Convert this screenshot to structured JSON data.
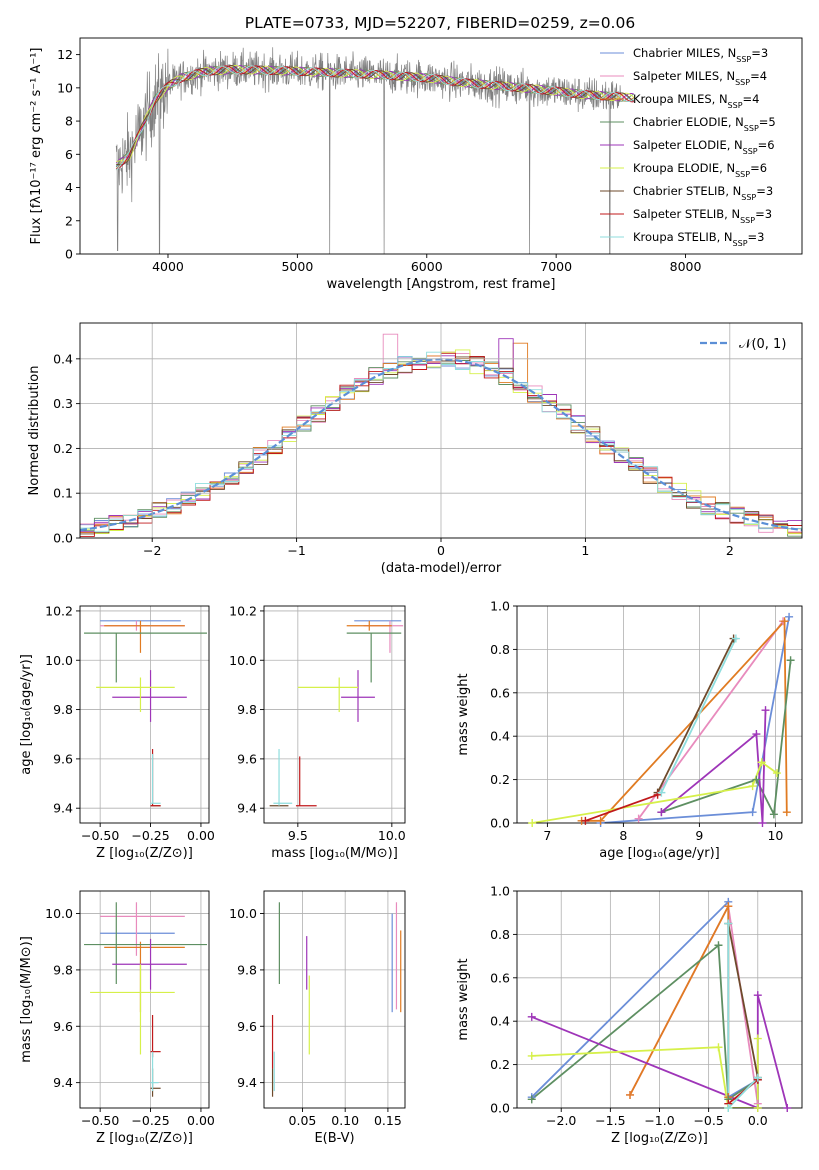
{
  "page_title": "PLATE=0733, MJD=52207, FIBERID=0259, z=0.06",
  "models": [
    {
      "name": "Chabrier MILES",
      "nssp": "3",
      "color": "#6b8ed8"
    },
    {
      "name": "Salpeter MILES",
      "nssp": "4",
      "color": "#e88bbd"
    },
    {
      "name": "Kroupa MILES",
      "nssp": "4",
      "color": "#e07b22"
    },
    {
      "name": "Chabrier ELODIE",
      "nssp": "5",
      "color": "#5e8f62"
    },
    {
      "name": "Salpeter ELODIE",
      "nssp": "6",
      "color": "#9e35b8"
    },
    {
      "name": "Kroupa ELODIE",
      "nssp": "6",
      "color": "#d6f04a"
    },
    {
      "name": "Chabrier STELIB",
      "nssp": "3",
      "color": "#6e4a2b"
    },
    {
      "name": "Salpeter STELIB",
      "nssp": "3",
      "color": "#c0191b"
    },
    {
      "name": "Kroupa STELIB",
      "nssp": "3",
      "color": "#8fdede"
    }
  ],
  "chart_data": [
    {
      "id": "spectrum",
      "type": "line",
      "xlabel": "wavelength [Angstrom, rest frame]",
      "ylabel": "Flux [fλ10⁻¹⁷ erg cm⁻² s⁻¹ A⁻¹]",
      "xlim": [
        3320,
        8900
      ],
      "ylim": [
        0,
        13
      ],
      "xticks": [
        4000,
        5000,
        6000,
        7000,
        8000
      ],
      "yticks": [
        0,
        2,
        4,
        6,
        8,
        10,
        12
      ],
      "data_color": "#808080",
      "continuum": {
        "x": [
          3600,
          3700,
          3800,
          3900,
          4000,
          4100,
          4300,
          4500,
          4800,
          5000,
          5300,
          5600,
          6000,
          6300,
          6600,
          7000,
          7200,
          7400,
          7600
        ],
        "y": [
          5.3,
          5.9,
          7.6,
          9.3,
          10.1,
          10.6,
          11.0,
          11.1,
          11.05,
          11.0,
          10.9,
          10.8,
          10.6,
          10.3,
          10.1,
          9.8,
          9.6,
          9.5,
          9.4
        ]
      },
      "absorption_dips": [
        {
          "x": 3610,
          "y": 0.2
        },
        {
          "x": 3935,
          "y": 0.0
        },
        {
          "x": 5250,
          "y": 0.0
        },
        {
          "x": 5670,
          "y": 0.0
        },
        {
          "x": 6795,
          "y": 0.0
        },
        {
          "x": 7415,
          "y": 0.0
        }
      ]
    },
    {
      "id": "residual_hist",
      "type": "bar",
      "xlabel": "(data-model)/error",
      "ylabel": "Normed distribution",
      "xlim": [
        -2.5,
        2.5
      ],
      "ylim": [
        0,
        0.48
      ],
      "xticks": [
        -2,
        -1,
        0,
        1,
        2
      ],
      "yticks": [
        0.0,
        0.1,
        0.2,
        0.3,
        0.4
      ],
      "bin_width": 0.1,
      "legend_label": "𝒩(0, 1)",
      "legend_color": "#5b8fd6",
      "outliers": [
        {
          "x": -0.35,
          "y": 0.455,
          "color": "#e88bbd"
        },
        {
          "x": 0.45,
          "y": 0.445,
          "color": "#9e35b8"
        },
        {
          "x": 0.55,
          "y": 0.435,
          "color": "#e07b22"
        },
        {
          "x": 0.15,
          "y": 0.42,
          "color": "#d6f04a"
        }
      ]
    },
    {
      "id": "age_vs_Z",
      "type": "errorbar",
      "xlabel": "Z [log₁₀(Z/Z⊙)]",
      "ylabel": "age  [log₁₀(age/yr)]",
      "xlim": [
        -0.6,
        0.04
      ],
      "ylim": [
        9.34,
        10.22
      ],
      "xticks": [
        -0.5,
        -0.25,
        0.0
      ],
      "xticklabels": [
        "−0.50",
        "−0.25",
        "0.00"
      ],
      "yticks": [
        9.4,
        9.6,
        9.8,
        10.0,
        10.2
      ],
      "points": [
        {
          "x": -0.32,
          "y": 10.16,
          "xl": -0.5,
          "xh": -0.1,
          "yl": 10.16,
          "yh": 10.16,
          "c": "#6b8ed8"
        },
        {
          "x": -0.32,
          "y": 10.14,
          "xl": -0.5,
          "xh": -0.08,
          "yl": 10.12,
          "yh": 10.16,
          "c": "#e88bbd"
        },
        {
          "x": -0.3,
          "y": 10.14,
          "xl": -0.48,
          "xh": -0.08,
          "yl": 10.03,
          "yh": 10.16,
          "c": "#e07b22"
        },
        {
          "x": -0.42,
          "y": 10.11,
          "xl": -0.58,
          "xh": 0.03,
          "yl": 9.91,
          "yh": 10.11,
          "c": "#5e8f62"
        },
        {
          "x": -0.25,
          "y": 9.85,
          "xl": -0.44,
          "xh": -0.07,
          "yl": 9.75,
          "yh": 9.96,
          "c": "#9e35b8"
        },
        {
          "x": -0.3,
          "y": 9.89,
          "xl": -0.52,
          "xh": -0.13,
          "yl": 9.79,
          "yh": 9.93,
          "c": "#d6f04a"
        },
        {
          "x": -0.24,
          "y": 9.41,
          "xl": -0.25,
          "xh": -0.2,
          "yl": 9.41,
          "yh": 9.41,
          "c": "#6e4a2b"
        },
        {
          "x": -0.24,
          "y": 9.41,
          "xl": -0.25,
          "xh": -0.2,
          "yl": 9.41,
          "yh": 9.64,
          "c": "#c0191b"
        },
        {
          "x": -0.24,
          "y": 9.42,
          "xl": -0.25,
          "xh": -0.2,
          "yl": 9.42,
          "yh": 9.62,
          "c": "#8fdede"
        }
      ]
    },
    {
      "id": "age_vs_mass",
      "type": "errorbar",
      "xlabel": "mass [log₁₀(M/M⊙)]",
      "ylabel": "",
      "xlim": [
        9.32,
        10.07
      ],
      "ylim": [
        9.34,
        10.22
      ],
      "xticks": [
        9.5,
        10.0
      ],
      "xticklabels": [
        "9.5",
        "10.0"
      ],
      "yticks": [
        9.4,
        9.6,
        9.8,
        10.0,
        10.2
      ],
      "points": [
        {
          "x": 9.93,
          "y": 10.16,
          "xl": 9.8,
          "xh": 10.05,
          "yl": 10.16,
          "yh": 10.16,
          "c": "#6b8ed8"
        },
        {
          "x": 9.99,
          "y": 10.14,
          "xl": 9.85,
          "xh": 10.06,
          "yl": 10.03,
          "yh": 10.16,
          "c": "#e88bbd"
        },
        {
          "x": 9.88,
          "y": 10.14,
          "xl": 9.76,
          "xh": 10.0,
          "yl": 10.12,
          "yh": 10.16,
          "c": "#e07b22"
        },
        {
          "x": 9.89,
          "y": 10.11,
          "xl": 9.76,
          "xh": 10.05,
          "yl": 9.91,
          "yh": 10.11,
          "c": "#5e8f62"
        },
        {
          "x": 9.82,
          "y": 9.85,
          "xl": 9.73,
          "xh": 9.91,
          "yl": 9.75,
          "yh": 9.96,
          "c": "#9e35b8"
        },
        {
          "x": 9.72,
          "y": 9.89,
          "xl": 9.5,
          "xh": 9.82,
          "yl": 9.79,
          "yh": 9.93,
          "c": "#d6f04a"
        },
        {
          "x": 9.38,
          "y": 9.41,
          "xl": 9.35,
          "xh": 9.45,
          "yl": 9.41,
          "yh": 9.41,
          "c": "#6e4a2b"
        },
        {
          "x": 9.51,
          "y": 9.41,
          "xl": 9.49,
          "xh": 9.6,
          "yl": 9.41,
          "yh": 9.61,
          "c": "#c0191b"
        },
        {
          "x": 9.4,
          "y": 9.42,
          "xl": 9.37,
          "xh": 9.47,
          "yl": 9.41,
          "yh": 9.64,
          "c": "#8fdede"
        }
      ]
    },
    {
      "id": "weight_vs_age",
      "type": "line",
      "xlabel": "age  [log₁₀(age/yr)]",
      "ylabel": "mass weight",
      "xlim": [
        6.6,
        10.35
      ],
      "ylim": [
        0,
        1
      ],
      "xticks": [
        7,
        8,
        9,
        10
      ],
      "yticks": [
        0.0,
        0.2,
        0.4,
        0.6,
        0.8,
        1.0
      ],
      "series": [
        {
          "c": "#6b8ed8",
          "x": [
            7.7,
            9.7,
            10.18
          ],
          "y": [
            0.0,
            0.05,
            0.95
          ]
        },
        {
          "c": "#e88bbd",
          "x": [
            8.2,
            10.1
          ],
          "y": [
            0.02,
            0.93
          ]
        },
        {
          "c": "#e07b22",
          "x": [
            7.45,
            7.7,
            10.12,
            10.15
          ],
          "y": [
            0.01,
            0.01,
            0.93,
            0.05
          ]
        },
        {
          "c": "#5e8f62",
          "x": [
            8.5,
            9.75,
            9.98,
            10.2
          ],
          "y": [
            0.05,
            0.2,
            0.04,
            0.75
          ]
        },
        {
          "c": "#9e35b8",
          "x": [
            8.5,
            9.75,
            9.83,
            9.87
          ],
          "y": [
            0.05,
            0.41,
            0.0,
            0.52
          ]
        },
        {
          "c": "#d6f04a",
          "x": [
            6.8,
            9.7,
            9.82,
            10.02
          ],
          "y": [
            0.0,
            0.17,
            0.28,
            0.23
          ]
        },
        {
          "c": "#6e4a2b",
          "x": [
            8.45,
            9.45
          ],
          "y": [
            0.14,
            0.85
          ]
        },
        {
          "c": "#c0191b",
          "x": [
            7.5,
            8.45
          ],
          "y": [
            0.01,
            0.13
          ]
        },
        {
          "c": "#8fdede",
          "x": [
            8.5,
            9.48
          ],
          "y": [
            0.14,
            0.85
          ]
        }
      ]
    },
    {
      "id": "mass_vs_Z",
      "type": "errorbar",
      "xlabel": "Z [log₁₀(Z/Z⊙)]",
      "ylabel": "mass [log₁₀(M/M⊙)]",
      "xlim": [
        -0.6,
        0.04
      ],
      "ylim": [
        9.31,
        10.08
      ],
      "xticks": [
        -0.5,
        -0.25,
        0.0
      ],
      "xticklabels": [
        "−0.50",
        "−0.25",
        "0.00"
      ],
      "yticks": [
        9.4,
        9.6,
        9.8,
        10.0
      ],
      "points": [
        {
          "x": -0.32,
          "y": 9.93,
          "xl": -0.5,
          "xh": -0.13,
          "yl": 9.93,
          "yh": 9.93,
          "c": "#6b8ed8"
        },
        {
          "x": -0.32,
          "y": 9.99,
          "xl": -0.5,
          "xh": -0.08,
          "yl": 9.85,
          "yh": 10.04,
          "c": "#e88bbd"
        },
        {
          "x": -0.3,
          "y": 9.88,
          "xl": -0.48,
          "xh": -0.08,
          "yl": 9.65,
          "yh": 9.9,
          "c": "#e07b22"
        },
        {
          "x": -0.42,
          "y": 9.89,
          "xl": -0.58,
          "xh": 0.03,
          "yl": 9.75,
          "yh": 10.04,
          "c": "#5e8f62"
        },
        {
          "x": -0.25,
          "y": 9.82,
          "xl": -0.44,
          "xh": -0.07,
          "yl": 9.73,
          "yh": 9.91,
          "c": "#9e35b8"
        },
        {
          "x": -0.3,
          "y": 9.72,
          "xl": -0.55,
          "xh": -0.13,
          "yl": 9.5,
          "yh": 9.82,
          "c": "#d6f04a"
        },
        {
          "x": -0.24,
          "y": 9.38,
          "xl": -0.25,
          "xh": -0.2,
          "yl": 9.35,
          "yh": 9.45,
          "c": "#6e4a2b"
        },
        {
          "x": -0.24,
          "y": 9.51,
          "xl": -0.25,
          "xh": -0.2,
          "yl": 9.49,
          "yh": 9.64,
          "c": "#c0191b"
        },
        {
          "x": -0.24,
          "y": 9.4,
          "xl": -0.25,
          "xh": -0.21,
          "yl": 9.37,
          "yh": 9.51,
          "c": "#8fdede"
        }
      ]
    },
    {
      "id": "mass_vs_ebv",
      "type": "errorbar",
      "xlabel": "E(B-V)",
      "ylabel": "",
      "xlim": [
        0.005,
        0.17
      ],
      "ylim": [
        9.31,
        10.08
      ],
      "xticks": [
        0.05,
        0.1,
        0.15
      ],
      "xticklabels": [
        "0.05",
        "0.10",
        "0.15"
      ],
      "yticks": [
        9.4,
        9.6,
        9.8,
        10.0
      ],
      "points": [
        {
          "x": 0.155,
          "y": 9.83,
          "xl": 0.155,
          "xh": 0.155,
          "yl": 9.65,
          "yh": 10.0,
          "c": "#6b8ed8"
        },
        {
          "x": 0.16,
          "y": 9.85,
          "xl": 0.16,
          "xh": 0.16,
          "yl": 9.66,
          "yh": 10.04,
          "c": "#e88bbd"
        },
        {
          "x": 0.165,
          "y": 9.8,
          "xl": 0.165,
          "xh": 0.165,
          "yl": 9.65,
          "yh": 9.94,
          "c": "#e07b22"
        },
        {
          "x": 0.023,
          "y": 9.9,
          "xl": 0.023,
          "xh": 0.023,
          "yl": 9.75,
          "yh": 10.04,
          "c": "#5e8f62"
        },
        {
          "x": 0.055,
          "y": 9.83,
          "xl": 0.055,
          "xh": 0.055,
          "yl": 9.73,
          "yh": 9.92,
          "c": "#9e35b8"
        },
        {
          "x": 0.058,
          "y": 9.65,
          "xl": 0.058,
          "xh": 0.058,
          "yl": 9.5,
          "yh": 9.78,
          "c": "#d6f04a"
        },
        {
          "x": 0.015,
          "y": 9.4,
          "xl": 0.015,
          "xh": 0.015,
          "yl": 9.35,
          "yh": 9.45,
          "c": "#6e4a2b"
        },
        {
          "x": 0.015,
          "y": 9.53,
          "xl": 0.015,
          "xh": 0.015,
          "yl": 9.45,
          "yh": 9.64,
          "c": "#c0191b"
        },
        {
          "x": 0.017,
          "y": 9.43,
          "xl": 0.017,
          "xh": 0.017,
          "yl": 9.37,
          "yh": 9.51,
          "c": "#8fdede"
        }
      ]
    },
    {
      "id": "weight_vs_Z",
      "type": "line",
      "xlabel": "Z [log₁₀(Z/Z⊙)]",
      "ylabel": "mass weight",
      "xlim": [
        -2.45,
        0.45
      ],
      "ylim": [
        0,
        1
      ],
      "xticks": [
        -2.0,
        -1.5,
        -1.0,
        -0.5,
        0.0
      ],
      "xticklabels": [
        "−2.0",
        "−1.5",
        "−1.0",
        "−0.5",
        "0.0"
      ],
      "yticks": [
        0.0,
        0.2,
        0.4,
        0.6,
        0.8,
        1.0
      ],
      "series": [
        {
          "c": "#6b8ed8",
          "x": [
            -2.3,
            -0.3,
            -0.3,
            0.0,
            0.0
          ],
          "y": [
            0.05,
            0.95,
            0.05,
            0.13,
            0.0
          ]
        },
        {
          "c": "#e88bbd",
          "x": [
            -1.3,
            -0.3,
            0.0
          ],
          "y": [
            0.06,
            0.93,
            0.02
          ]
        },
        {
          "c": "#e07b22",
          "x": [
            -1.3,
            -0.3,
            -0.3
          ],
          "y": [
            0.06,
            0.93,
            0.05
          ]
        },
        {
          "c": "#5e8f62",
          "x": [
            -2.3,
            -0.4,
            -0.3,
            0.0,
            0.0
          ],
          "y": [
            0.04,
            0.75,
            0.04,
            0.13,
            0.0
          ]
        },
        {
          "c": "#9e35b8",
          "x": [
            -2.3,
            0.0,
            0.0,
            0.3
          ],
          "y": [
            0.42,
            0.0,
            0.52,
            0.0
          ]
        },
        {
          "c": "#d6f04a",
          "x": [
            -2.3,
            -0.4,
            -0.3,
            0.0,
            0.0
          ],
          "y": [
            0.24,
            0.28,
            0.0,
            0.0,
            0.32
          ]
        },
        {
          "c": "#6e4a2b",
          "x": [
            -0.3,
            0.0
          ],
          "y": [
            0.85,
            0.14
          ]
        },
        {
          "c": "#c0191b",
          "x": [
            -0.3,
            0.0
          ],
          "y": [
            0.02,
            0.13
          ]
        },
        {
          "c": "#8fdede",
          "x": [
            -0.3,
            -0.3,
            0.0
          ],
          "y": [
            0.85,
            0.0,
            0.14
          ]
        }
      ]
    }
  ]
}
